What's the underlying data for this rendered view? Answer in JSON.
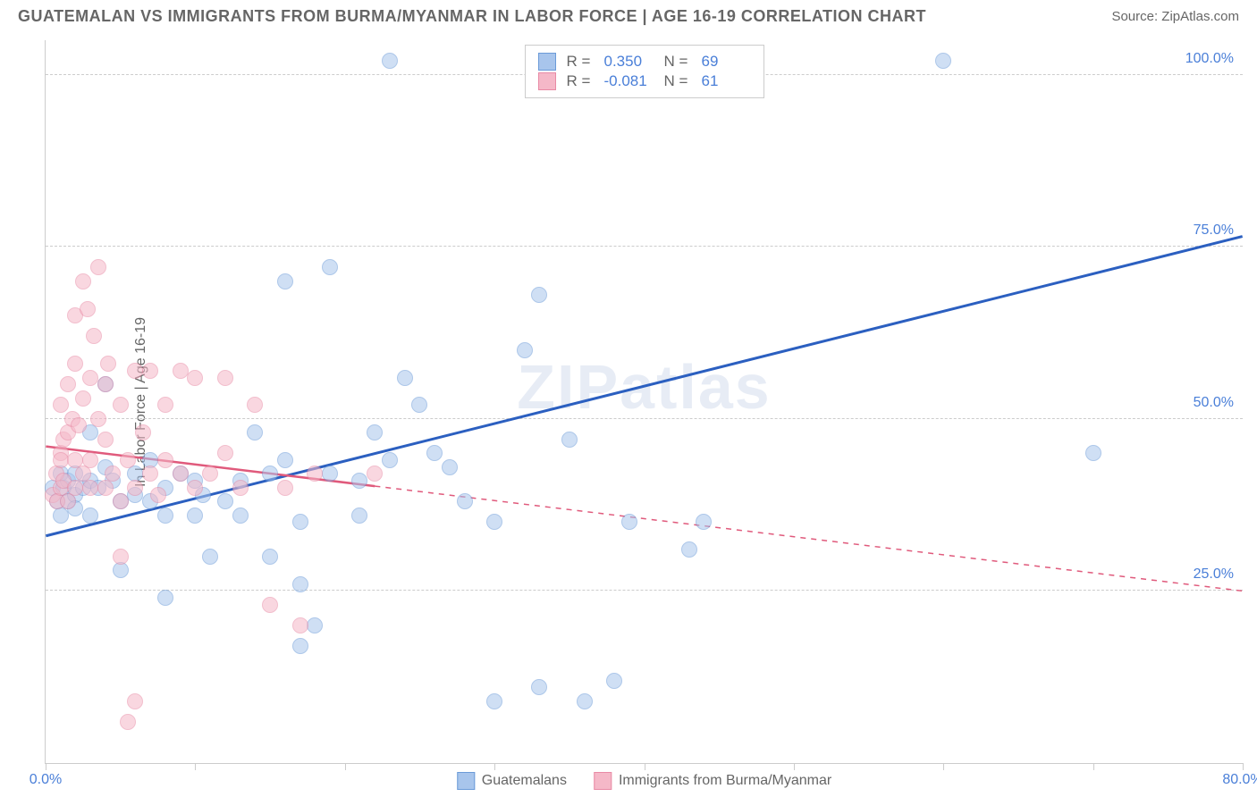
{
  "title": "GUATEMALAN VS IMMIGRANTS FROM BURMA/MYANMAR IN LABOR FORCE | AGE 16-19 CORRELATION CHART",
  "source": "Source: ZipAtlas.com",
  "ylabel": "In Labor Force | Age 16-19",
  "watermark": "ZIPatlas",
  "chart": {
    "type": "scatter",
    "xlim": [
      0,
      80
    ],
    "ylim": [
      0,
      105
    ],
    "x_ticks": [
      0,
      10,
      20,
      30,
      40,
      50,
      60,
      70,
      80
    ],
    "x_tick_labels": {
      "0": "0.0%",
      "80": "80.0%"
    },
    "y_gridlines": [
      25,
      50,
      75,
      100
    ],
    "y_tick_labels": {
      "25": "25.0%",
      "50": "50.0%",
      "75": "75.0%",
      "100": "100.0%"
    },
    "grid_color": "#cccccc",
    "background_color": "#ffffff",
    "marker_radius": 9,
    "marker_opacity": 0.55,
    "series": [
      {
        "name": "Guatemalans",
        "color_fill": "#a8c5ec",
        "color_stroke": "#6b9bd8",
        "R": "0.350",
        "N": "69",
        "trend": {
          "x1": 0,
          "y1": 33,
          "x2": 80,
          "y2": 76.5,
          "solid_until_x": 80,
          "color": "#2b5fc0",
          "width": 3
        },
        "points": [
          [
            0.5,
            40
          ],
          [
            0.8,
            38
          ],
          [
            1,
            42
          ],
          [
            1,
            36
          ],
          [
            1.2,
            40
          ],
          [
            1.5,
            38
          ],
          [
            1.5,
            41
          ],
          [
            2,
            39
          ],
          [
            2,
            42
          ],
          [
            2,
            37
          ],
          [
            2.5,
            40
          ],
          [
            3,
            41
          ],
          [
            3,
            48
          ],
          [
            3,
            36
          ],
          [
            3.5,
            40
          ],
          [
            4,
            43
          ],
          [
            4,
            55
          ],
          [
            4.5,
            41
          ],
          [
            5,
            38
          ],
          [
            5,
            28
          ],
          [
            6,
            39
          ],
          [
            6,
            42
          ],
          [
            7,
            38
          ],
          [
            7,
            44
          ],
          [
            8,
            36
          ],
          [
            8,
            40
          ],
          [
            8,
            24
          ],
          [
            9,
            42
          ],
          [
            10,
            41
          ],
          [
            10,
            36
          ],
          [
            10.5,
            39
          ],
          [
            11,
            30
          ],
          [
            12,
            38
          ],
          [
            13,
            41
          ],
          [
            13,
            36
          ],
          [
            14,
            48
          ],
          [
            15,
            42
          ],
          [
            15,
            30
          ],
          [
            16,
            44
          ],
          [
            16,
            70
          ],
          [
            17,
            35
          ],
          [
            17,
            26
          ],
          [
            17,
            17
          ],
          [
            18,
            20
          ],
          [
            19,
            42
          ],
          [
            19,
            72
          ],
          [
            21,
            41
          ],
          [
            21,
            36
          ],
          [
            22,
            48
          ],
          [
            23,
            102
          ],
          [
            23,
            44
          ],
          [
            24,
            56
          ],
          [
            25,
            52
          ],
          [
            26,
            45
          ],
          [
            27,
            43
          ],
          [
            28,
            38
          ],
          [
            30,
            35
          ],
          [
            30,
            9
          ],
          [
            32,
            60
          ],
          [
            33,
            68
          ],
          [
            33,
            11
          ],
          [
            35,
            47
          ],
          [
            36,
            9
          ],
          [
            38,
            12
          ],
          [
            39,
            35
          ],
          [
            43,
            31
          ],
          [
            44,
            35
          ],
          [
            60,
            102
          ],
          [
            70,
            45
          ]
        ]
      },
      {
        "name": "Immigrants from Burma/Myanmar",
        "color_fill": "#f5b8c8",
        "color_stroke": "#e88aa5",
        "R": "-0.081",
        "N": "61",
        "trend": {
          "x1": 0,
          "y1": 46,
          "x2": 80,
          "y2": 25,
          "solid_until_x": 22,
          "color": "#e05a7c",
          "width": 2.5
        },
        "points": [
          [
            0.5,
            39
          ],
          [
            0.7,
            42
          ],
          [
            0.8,
            38
          ],
          [
            1,
            45
          ],
          [
            1,
            40
          ],
          [
            1,
            44
          ],
          [
            1,
            52
          ],
          [
            1.2,
            47
          ],
          [
            1.2,
            41
          ],
          [
            1.5,
            48
          ],
          [
            1.5,
            38
          ],
          [
            1.5,
            55
          ],
          [
            1.8,
            50
          ],
          [
            2,
            58
          ],
          [
            2,
            44
          ],
          [
            2,
            40
          ],
          [
            2,
            65
          ],
          [
            2.2,
            49
          ],
          [
            2.5,
            53
          ],
          [
            2.5,
            42
          ],
          [
            2.5,
            70
          ],
          [
            2.8,
            66
          ],
          [
            3,
            56
          ],
          [
            3,
            44
          ],
          [
            3,
            40
          ],
          [
            3.2,
            62
          ],
          [
            3.5,
            50
          ],
          [
            3.5,
            72
          ],
          [
            4,
            55
          ],
          [
            4,
            40
          ],
          [
            4,
            47
          ],
          [
            4.2,
            58
          ],
          [
            4.5,
            42
          ],
          [
            5,
            38
          ],
          [
            5,
            30
          ],
          [
            5,
            52
          ],
          [
            5.5,
            44
          ],
          [
            5.5,
            6
          ],
          [
            6,
            40
          ],
          [
            6,
            57
          ],
          [
            6,
            9
          ],
          [
            6.5,
            48
          ],
          [
            7,
            42
          ],
          [
            7,
            57
          ],
          [
            7.5,
            39
          ],
          [
            8,
            52
          ],
          [
            8,
            44
          ],
          [
            9,
            42
          ],
          [
            9,
            57
          ],
          [
            10,
            40
          ],
          [
            10,
            56
          ],
          [
            11,
            42
          ],
          [
            12,
            56
          ],
          [
            12,
            45
          ],
          [
            13,
            40
          ],
          [
            14,
            52
          ],
          [
            15,
            23
          ],
          [
            16,
            40
          ],
          [
            17,
            20
          ],
          [
            18,
            42
          ],
          [
            22,
            42
          ]
        ]
      }
    ],
    "legend": [
      {
        "label": "Guatemalans",
        "fill": "#a8c5ec",
        "stroke": "#6b9bd8"
      },
      {
        "label": "Immigrants from Burma/Myanmar",
        "fill": "#f5b8c8",
        "stroke": "#e88aa5"
      }
    ]
  }
}
